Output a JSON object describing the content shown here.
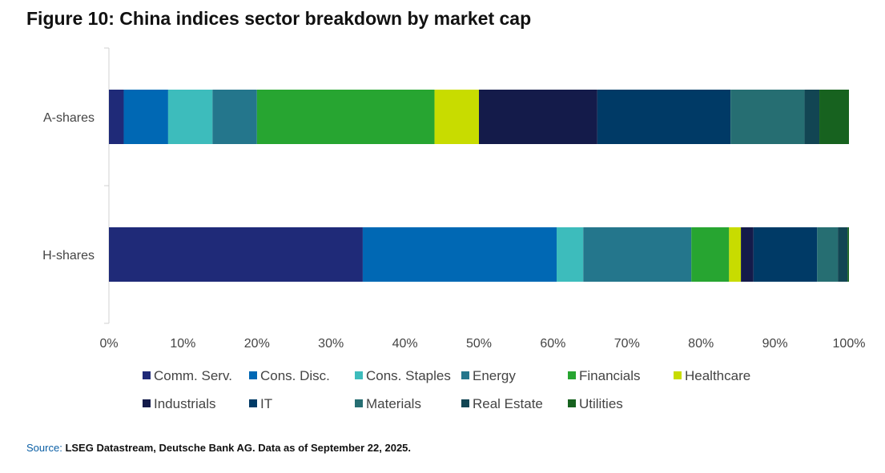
{
  "title": "Figure 10: China indices sector breakdown by market cap",
  "source": {
    "label": "Source:",
    "text": "LSEG Datastream, Deutsche Bank AG. Data as of September 22, 2025."
  },
  "chart_data": {
    "type": "bar",
    "orientation": "horizontal",
    "stacked": true,
    "categories": [
      "A-shares",
      "H-shares"
    ],
    "xlim": [
      0,
      100
    ],
    "xticks": [
      "0%",
      "10%",
      "20%",
      "30%",
      "40%",
      "50%",
      "60%",
      "70%",
      "80%",
      "90%",
      "100%"
    ],
    "legend_position": "bottom",
    "series": [
      {
        "name": "Comm. Serv.",
        "color": "#1f2a78",
        "values": [
          2.0,
          34.3
        ]
      },
      {
        "name": "Cons. Disc.",
        "color": "#0068b4",
        "values": [
          6.0,
          26.2
        ]
      },
      {
        "name": "Cons. Staples",
        "color": "#3dbcbc",
        "values": [
          6.0,
          3.6
        ]
      },
      {
        "name": "Energy",
        "color": "#24768c",
        "values": [
          6.0,
          14.6
        ]
      },
      {
        "name": "Financials",
        "color": "#27a531",
        "values": [
          24.0,
          5.1
        ]
      },
      {
        "name": "Healthcare",
        "color": "#c8dc00",
        "values": [
          6.0,
          1.6
        ]
      },
      {
        "name": "Industrials",
        "color": "#141b4a",
        "values": [
          16.0,
          1.7
        ]
      },
      {
        "name": "IT",
        "color": "#003a66",
        "values": [
          18.0,
          8.6
        ]
      },
      {
        "name": "Materials",
        "color": "#266e72",
        "values": [
          10.0,
          2.8
        ]
      },
      {
        "name": "Real Estate",
        "color": "#124553",
        "values": [
          2.0,
          1.3
        ]
      },
      {
        "name": "Utilities",
        "color": "#17621f",
        "values": [
          4.0,
          0.2
        ]
      }
    ]
  }
}
